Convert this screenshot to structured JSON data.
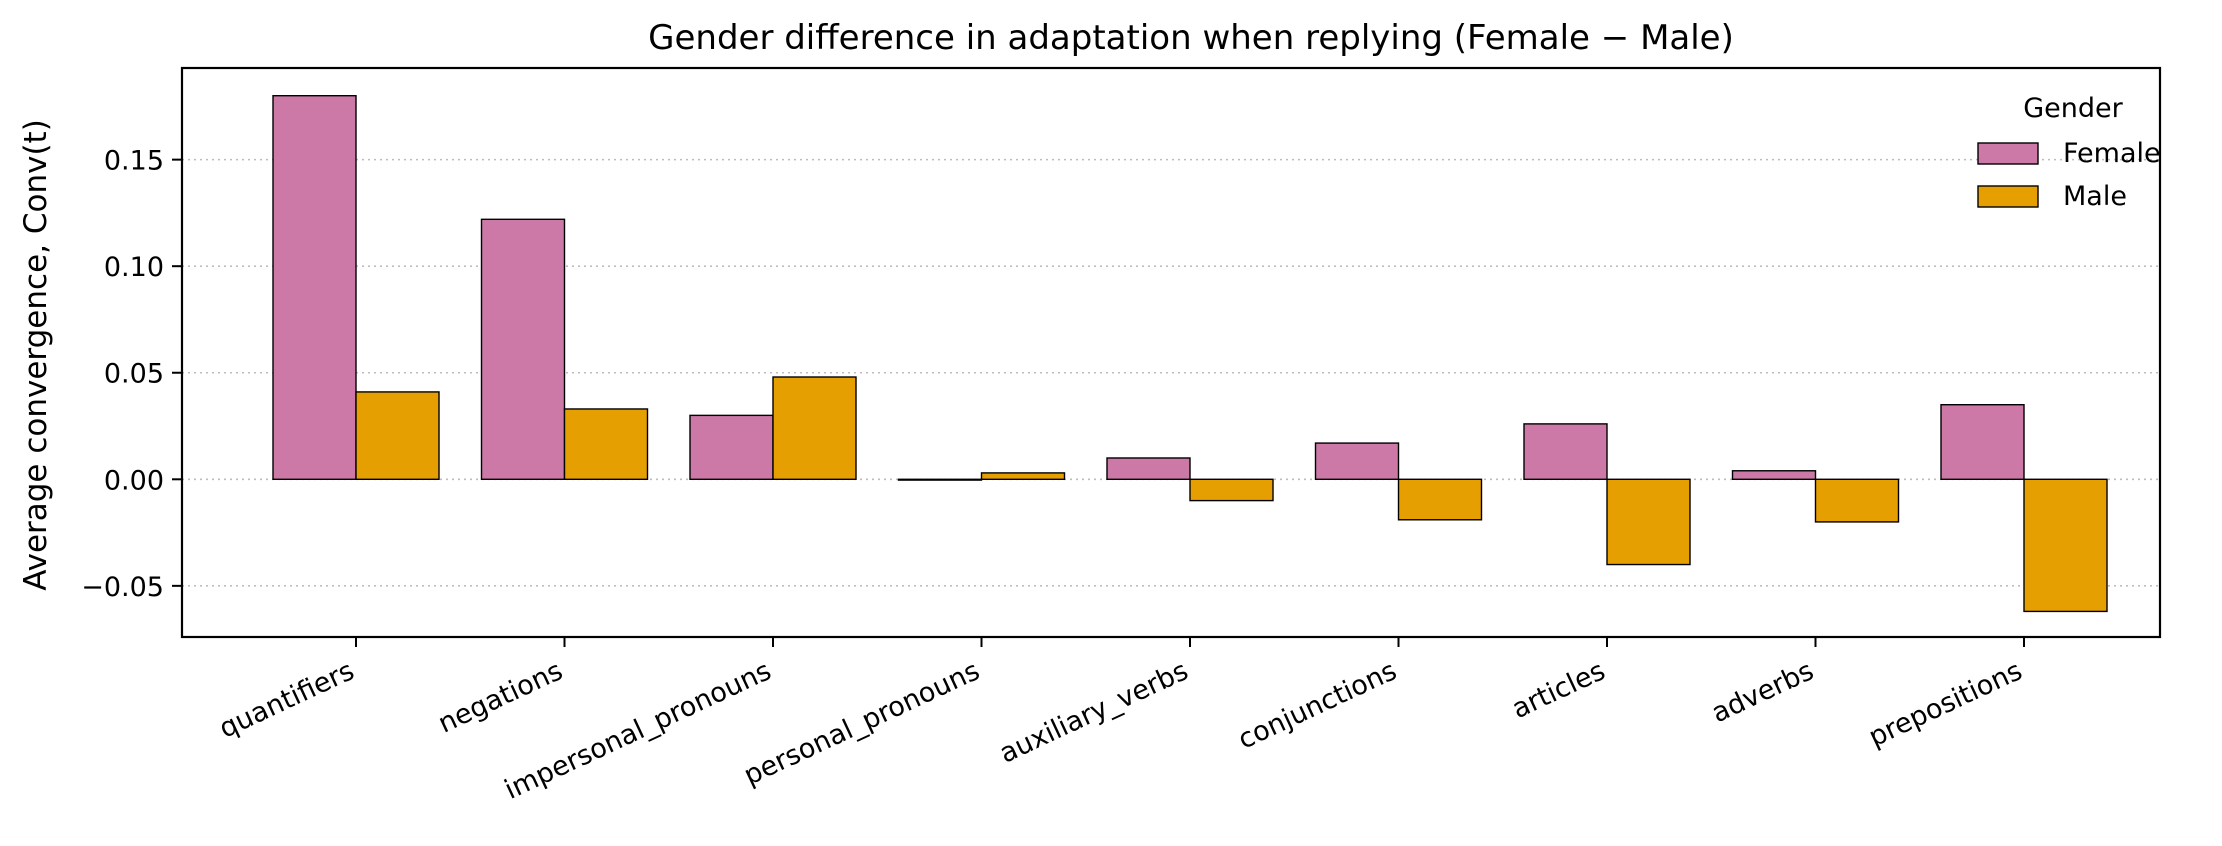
{
  "chart_data": {
    "type": "bar",
    "title": "Gender difference in adaptation when replying (Female − Male)",
    "xlabel": "",
    "ylabel": "Average convergence, Conv(t)",
    "categories": [
      "quantifiers",
      "negations",
      "impersonal_pronouns",
      "personal_pronouns",
      "auxiliary_verbs",
      "conjunctions",
      "articles",
      "adverbs",
      "prepositions"
    ],
    "series": [
      {
        "name": "Female",
        "color": "#CC79A7",
        "values": [
          0.18,
          0.122,
          0.03,
          0.0,
          0.01,
          0.017,
          0.026,
          0.004,
          0.035
        ]
      },
      {
        "name": "Male",
        "color": "#E69F00",
        "values": [
          0.041,
          0.033,
          0.048,
          0.003,
          -0.01,
          -0.019,
          -0.04,
          -0.02,
          -0.062
        ]
      }
    ],
    "yticks": [
      -0.05,
      0.0,
      0.05,
      0.1,
      0.15
    ],
    "ytick_labels": [
      "−0.05",
      "0.00",
      "0.05",
      "0.10",
      "0.15"
    ],
    "ylim": [
      -0.074,
      0.193
    ],
    "grid": "y-dotted",
    "legend": {
      "title": "Gender",
      "placement": "top-right"
    }
  }
}
